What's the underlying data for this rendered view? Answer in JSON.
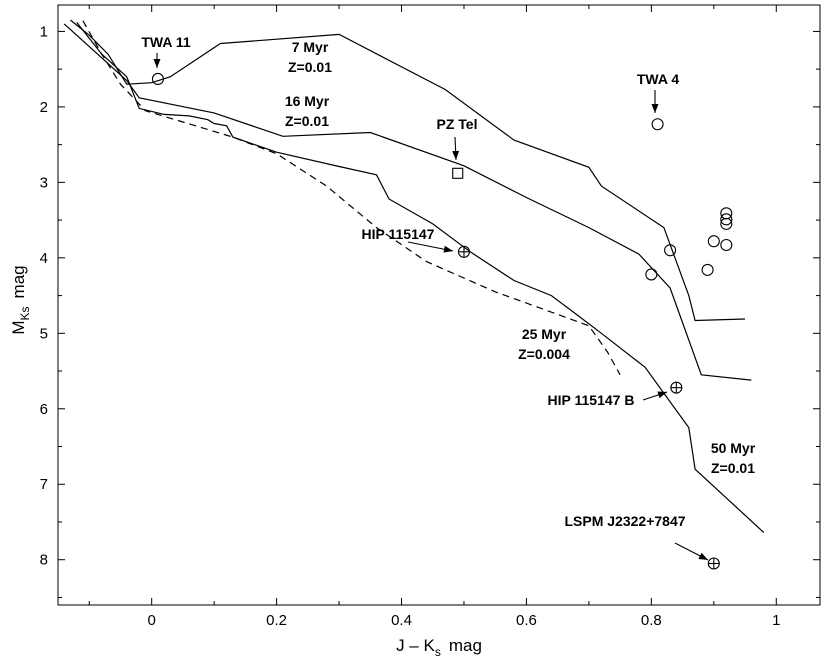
{
  "chart_data": {
    "type": "scatter",
    "xlabel": "J – K",
    "xlabel_sub": "s",
    "xlabel_unit": "mag",
    "ylabel": "M",
    "ylabel_sub": "Ks",
    "ylabel_unit": "mag",
    "xlim": [
      -0.15,
      1.07
    ],
    "ylim": [
      8.6,
      0.65
    ],
    "y_inverted": true,
    "grid": false,
    "x_ticks": [
      0,
      0.2,
      0.4,
      0.6,
      0.8,
      1
    ],
    "x_tick_labels": [
      "0",
      "0.2",
      "0.4",
      "0.6",
      "0.8",
      "1"
    ],
    "y_ticks": [
      1,
      2,
      3,
      4,
      5,
      6,
      7,
      8
    ],
    "y_tick_labels": [
      "1",
      "2",
      "3",
      "4",
      "5",
      "6",
      "7",
      "8"
    ],
    "isochrones": [
      {
        "label": [
          "7 Myr",
          "Z=0.01"
        ],
        "style": "solid",
        "points": [
          [
            -0.13,
            0.85
          ],
          [
            -0.1,
            1.05
          ],
          [
            -0.07,
            1.3
          ],
          [
            -0.04,
            1.7
          ],
          [
            0.0,
            1.68
          ],
          [
            0.03,
            1.6
          ],
          [
            0.11,
            1.16
          ],
          [
            0.3,
            1.04
          ],
          [
            0.47,
            1.77
          ],
          [
            0.58,
            2.44
          ],
          [
            0.7,
            2.8
          ],
          [
            0.72,
            3.05
          ],
          [
            0.82,
            3.6
          ],
          [
            0.86,
            4.5
          ],
          [
            0.87,
            4.83
          ],
          [
            0.95,
            4.81
          ]
        ]
      },
      {
        "label": [
          "16 Myr",
          "Z=0.01"
        ],
        "style": "solid",
        "points": [
          [
            -0.14,
            0.9
          ],
          [
            -0.08,
            1.35
          ],
          [
            -0.04,
            1.65
          ],
          [
            -0.02,
            1.88
          ],
          [
            0.1,
            2.08
          ],
          [
            0.21,
            2.39
          ],
          [
            0.35,
            2.34
          ],
          [
            0.5,
            2.78
          ],
          [
            0.6,
            3.2
          ],
          [
            0.7,
            3.6
          ],
          [
            0.78,
            3.95
          ],
          [
            0.83,
            4.4
          ],
          [
            0.88,
            5.55
          ],
          [
            0.96,
            5.62
          ]
        ]
      },
      {
        "label": [
          "25 Myr",
          "Z=0.004"
        ],
        "style": "dashed",
        "points": [
          [
            -0.11,
            0.86
          ],
          [
            -0.08,
            1.3
          ],
          [
            -0.05,
            1.7
          ],
          [
            -0.01,
            2.05
          ],
          [
            0.05,
            2.2
          ],
          [
            0.13,
            2.4
          ],
          [
            0.2,
            2.62
          ],
          [
            0.28,
            3.05
          ],
          [
            0.36,
            3.6
          ],
          [
            0.44,
            4.05
          ],
          [
            0.55,
            4.45
          ],
          [
            0.65,
            4.75
          ],
          [
            0.7,
            4.9
          ],
          [
            0.73,
            5.25
          ],
          [
            0.75,
            5.55
          ]
        ]
      },
      {
        "label": [
          "50 Myr",
          "Z=0.01"
        ],
        "style": "solid",
        "points": [
          [
            -0.12,
            0.88
          ],
          [
            -0.08,
            1.3
          ],
          [
            -0.04,
            1.6
          ],
          [
            -0.02,
            2.02
          ],
          [
            0.02,
            2.1
          ],
          [
            0.06,
            2.12
          ],
          [
            0.09,
            2.17
          ],
          [
            0.1,
            2.22
          ],
          [
            0.12,
            2.25
          ],
          [
            0.13,
            2.4
          ],
          [
            0.2,
            2.6
          ],
          [
            0.3,
            2.79
          ],
          [
            0.36,
            2.9
          ],
          [
            0.38,
            3.22
          ],
          [
            0.45,
            3.55
          ],
          [
            0.51,
            3.92
          ],
          [
            0.58,
            4.3
          ],
          [
            0.64,
            4.5
          ],
          [
            0.68,
            4.75
          ],
          [
            0.72,
            5.0
          ],
          [
            0.79,
            5.45
          ],
          [
            0.86,
            6.25
          ],
          [
            0.87,
            6.8
          ],
          [
            0.98,
            7.64
          ]
        ]
      }
    ],
    "stars": [
      {
        "name": "TWA 11",
        "x": 0.01,
        "y": 1.63,
        "marker": "circle"
      },
      {
        "name": "TWA 4",
        "x": 0.81,
        "y": 2.23,
        "marker": "circle"
      },
      {
        "name": "PZ Tel",
        "x": 0.49,
        "y": 2.88,
        "marker": "square"
      },
      {
        "name": "HIP 115147",
        "x": 0.5,
        "y": 3.92,
        "marker": "circle-plus"
      },
      {
        "name": "HIP 115147 B",
        "x": 0.84,
        "y": 5.72,
        "marker": "circle-plus"
      },
      {
        "name": "LSPM J2322+7847",
        "x": 0.9,
        "y": 8.05,
        "marker": "circle-plus"
      },
      {
        "name": "",
        "x": 0.92,
        "y": 3.41,
        "marker": "circle"
      },
      {
        "name": "",
        "x": 0.92,
        "y": 3.49,
        "marker": "circle"
      },
      {
        "name": "",
        "x": 0.92,
        "y": 3.55,
        "marker": "circle"
      },
      {
        "name": "",
        "x": 0.9,
        "y": 3.78,
        "marker": "circle"
      },
      {
        "name": "",
        "x": 0.83,
        "y": 3.9,
        "marker": "circle"
      },
      {
        "name": "",
        "x": 0.92,
        "y": 3.83,
        "marker": "circle"
      },
      {
        "name": "",
        "x": 0.8,
        "y": 4.22,
        "marker": "circle"
      },
      {
        "name": "",
        "x": 0.89,
        "y": 4.16,
        "marker": "circle"
      }
    ],
    "annotations": {
      "iso_7": [
        "7 Myr",
        "Z=0.01"
      ],
      "iso_16": [
        "16 Myr",
        "Z=0.01"
      ],
      "iso_25": [
        "25 Myr",
        "Z=0.004"
      ],
      "iso_50": [
        "50 Myr",
        "Z=0.01"
      ],
      "twa11": "TWA 11",
      "twa4": "TWA 4",
      "pztel": "PZ Tel",
      "hip": "HIP 115147",
      "hipb": "HIP 115147 B",
      "lspm": "LSPM J2322+7847"
    }
  }
}
